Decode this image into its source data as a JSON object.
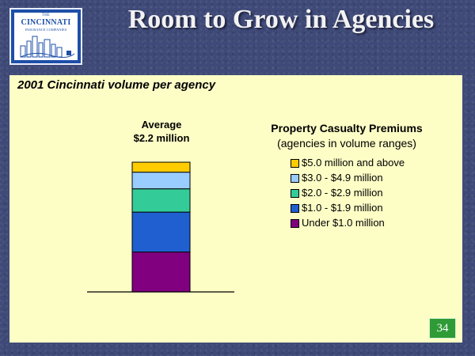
{
  "logo": {
    "the": "THE",
    "main": "CINCINNATI",
    "sub": "INSURANCE COMPANIES"
  },
  "title": "Room to Grow in Agencies",
  "subtitle": "2001 Cincinnati volume per agency",
  "page_number": "34",
  "chart_data": {
    "type": "bar",
    "stacked": true,
    "bar_label": [
      "Average",
      "$2.2 million"
    ],
    "legend_title": "Property Casualty Premiums",
    "legend_subtitle": "(agencies in volume ranges)",
    "legend_placement": "right",
    "ylim": [
      0,
      2.2
    ],
    "categories": [
      "Average"
    ],
    "series": [
      {
        "name": "Under $1.0 million",
        "values": [
          0.6
        ],
        "color": "#800080"
      },
      {
        "name": "$1.0 - $1.9 million",
        "values": [
          0.6
        ],
        "color": "#1f5fd0"
      },
      {
        "name": "$2.0 - $2.9 million",
        "values": [
          0.35
        ],
        "color": "#33cc99"
      },
      {
        "name": "$3.0 - $4.9 million",
        "values": [
          0.25
        ],
        "color": "#99ccff"
      },
      {
        "name": "$5.0 million and above",
        "values": [
          0.15
        ],
        "color": "#ffcc00"
      }
    ],
    "grid": false
  }
}
